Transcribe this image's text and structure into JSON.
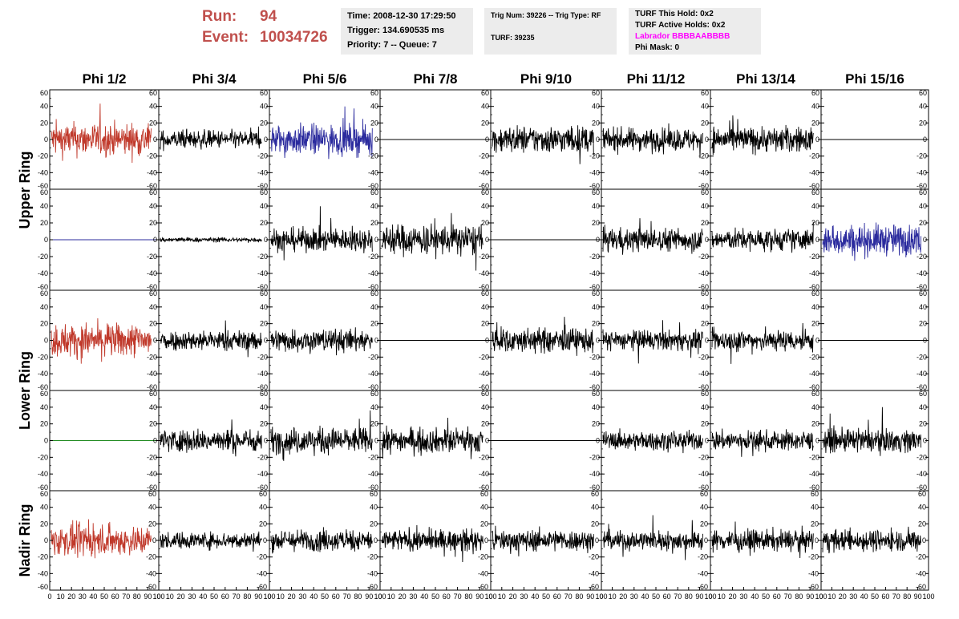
{
  "header": {
    "run_label": "Run:",
    "run_value": "94",
    "event_label": "Event:",
    "event_value": "10034726",
    "time": "Time: 2008-12-30 17:29:50",
    "trigger": "Trigger: 134.690535 ms",
    "priority": "Priority: 7 -- Queue: 7",
    "trig_num": "Trig Num: 39226 -- Trig Type: RF",
    "turf": "TURF: 39235",
    "turf_this_hold": "TURF This Hold: 0x2",
    "turf_active_holds": "TURF Active Holds: 0x2",
    "labrador": "Labrador BBBBAABBBB",
    "phi_mask": "Phi Mask: 0"
  },
  "colors": {
    "title_red": "#c0504d",
    "labrador_magenta": "#ff00ff",
    "panel_bg": "#ececec"
  },
  "chart_data": {
    "type": "line",
    "grid": false,
    "ylim": [
      -60,
      60
    ],
    "xlim": [
      0,
      100
    ],
    "y_ticks": [
      "60",
      "40",
      "20",
      "0",
      "-20",
      "-40",
      "-60"
    ],
    "x_ticks": [
      "0",
      "10",
      "20",
      "30",
      "40",
      "50",
      "60",
      "70",
      "80",
      "90",
      "100"
    ],
    "columns": [
      "Phi 1/2",
      "Phi 3/4",
      "Phi 5/6",
      "Phi 7/8",
      "Phi 9/10",
      "Phi 11/12",
      "Phi 13/14",
      "Phi 15/16"
    ],
    "row_groups": [
      "Upper Ring",
      "Lower Ring",
      "Nadir Ring"
    ],
    "rows": [
      {
        "group": "Upper Ring",
        "panels": [
          {
            "color": "#c0392b",
            "amp": 22,
            "flat": false
          },
          {
            "color": "#000000",
            "amp": 12,
            "flat": false
          },
          {
            "color": "#2b2b9e",
            "amp": 20,
            "flat": false
          },
          {
            "color": "#000000",
            "amp": 0,
            "flat": true
          },
          {
            "color": "#000000",
            "amp": 18,
            "flat": false
          },
          {
            "color": "#000000",
            "amp": 15,
            "flat": false
          },
          {
            "color": "#000000",
            "amp": 17,
            "flat": false
          },
          {
            "color": "#000000",
            "amp": 0,
            "flat": true
          }
        ]
      },
      {
        "group": "Upper Ring",
        "panels": [
          {
            "color": "#2b2b9e",
            "amp": 0,
            "flat": true
          },
          {
            "color": "#000000",
            "amp": 3,
            "flat": false
          },
          {
            "color": "#000000",
            "amp": 15,
            "flat": false
          },
          {
            "color": "#000000",
            "amp": 20,
            "flat": false
          },
          {
            "color": "#000000",
            "amp": 0,
            "flat": true
          },
          {
            "color": "#000000",
            "amp": 15,
            "flat": false
          },
          {
            "color": "#000000",
            "amp": 14,
            "flat": false
          },
          {
            "color": "#2b2b9e",
            "amp": 20,
            "flat": false
          }
        ]
      },
      {
        "group": "Lower Ring",
        "panels": [
          {
            "color": "#c0392b",
            "amp": 22,
            "flat": false
          },
          {
            "color": "#000000",
            "amp": 13,
            "flat": false
          },
          {
            "color": "#000000",
            "amp": 15,
            "flat": false
          },
          {
            "color": "#000000",
            "amp": 0,
            "flat": true
          },
          {
            "color": "#000000",
            "amp": 16,
            "flat": false
          },
          {
            "color": "#000000",
            "amp": 13,
            "flat": false
          },
          {
            "color": "#000000",
            "amp": 14,
            "flat": false
          },
          {
            "color": "#000000",
            "amp": 0,
            "flat": true
          }
        ]
      },
      {
        "group": "Lower Ring",
        "panels": [
          {
            "color": "#1e8a1e",
            "amp": 0,
            "flat": true
          },
          {
            "color": "#000000",
            "amp": 15,
            "flat": false
          },
          {
            "color": "#000000",
            "amp": 17,
            "flat": false
          },
          {
            "color": "#000000",
            "amp": 16,
            "flat": false
          },
          {
            "color": "#000000",
            "amp": 0,
            "flat": true
          },
          {
            "color": "#000000",
            "amp": 12,
            "flat": false
          },
          {
            "color": "#000000",
            "amp": 13,
            "flat": false
          },
          {
            "color": "#000000",
            "amp": 15,
            "flat": false
          }
        ]
      },
      {
        "group": "Nadir Ring",
        "panels": [
          {
            "color": "#c0392b",
            "amp": 20,
            "flat": false
          },
          {
            "color": "#000000",
            "amp": 11,
            "flat": false
          },
          {
            "color": "#000000",
            "amp": 14,
            "flat": false
          },
          {
            "color": "#000000",
            "amp": 14,
            "flat": false
          },
          {
            "color": "#000000",
            "amp": 14,
            "flat": false
          },
          {
            "color": "#000000",
            "amp": 13,
            "flat": false
          },
          {
            "color": "#000000",
            "amp": 14,
            "flat": false
          },
          {
            "color": "#000000",
            "amp": 14,
            "flat": false
          }
        ]
      }
    ]
  }
}
